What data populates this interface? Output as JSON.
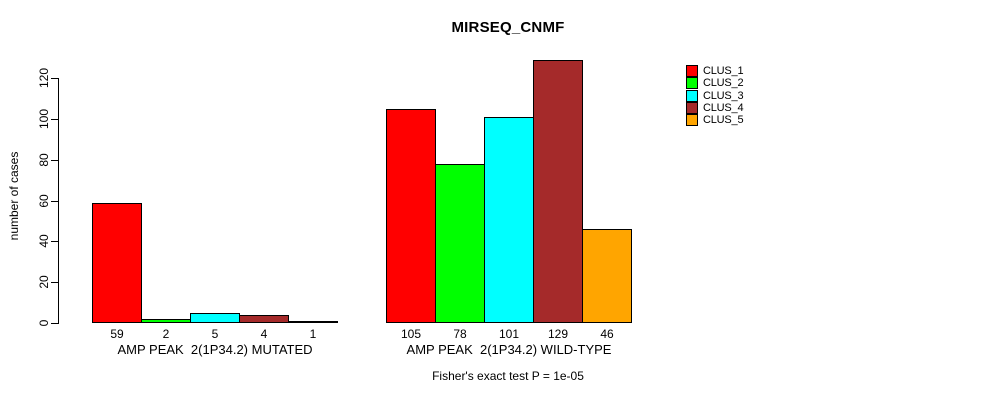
{
  "chart_data": {
    "type": "bar",
    "title": "MIRSEQ_CNMF",
    "ylabel": "number of cases",
    "xlabel": "",
    "categories": [
      "AMP PEAK  2(1P34.2) MUTATED",
      "AMP PEAK  2(1P34.2) WILD-TYPE"
    ],
    "series": [
      {
        "name": "CLUS_1",
        "color": "#ff0000",
        "values": [
          59,
          105
        ]
      },
      {
        "name": "CLUS_2",
        "color": "#00ff00",
        "values": [
          2,
          78
        ]
      },
      {
        "name": "CLUS_3",
        "color": "#00ffff",
        "values": [
          5,
          101
        ]
      },
      {
        "name": "CLUS_4",
        "color": "#a52a2a",
        "values": [
          4,
          129
        ]
      },
      {
        "name": "CLUS_5",
        "color": "#ffa500",
        "values": [
          1,
          46
        ]
      }
    ],
    "yticks": [
      0,
      20,
      40,
      60,
      80,
      100,
      120
    ],
    "ylim": [
      0,
      130
    ],
    "grid": false,
    "legend_position": "right",
    "legend_labels": [
      "CLUS_1",
      "CLUS_2",
      "CLUS_3",
      "CLUS_4",
      "CLUS_5"
    ],
    "values_labeled_under_bars": true,
    "annotation": "Fisher's exact test P = 1e-05",
    "text_color": "#000000",
    "background_color": "#ffffff"
  }
}
